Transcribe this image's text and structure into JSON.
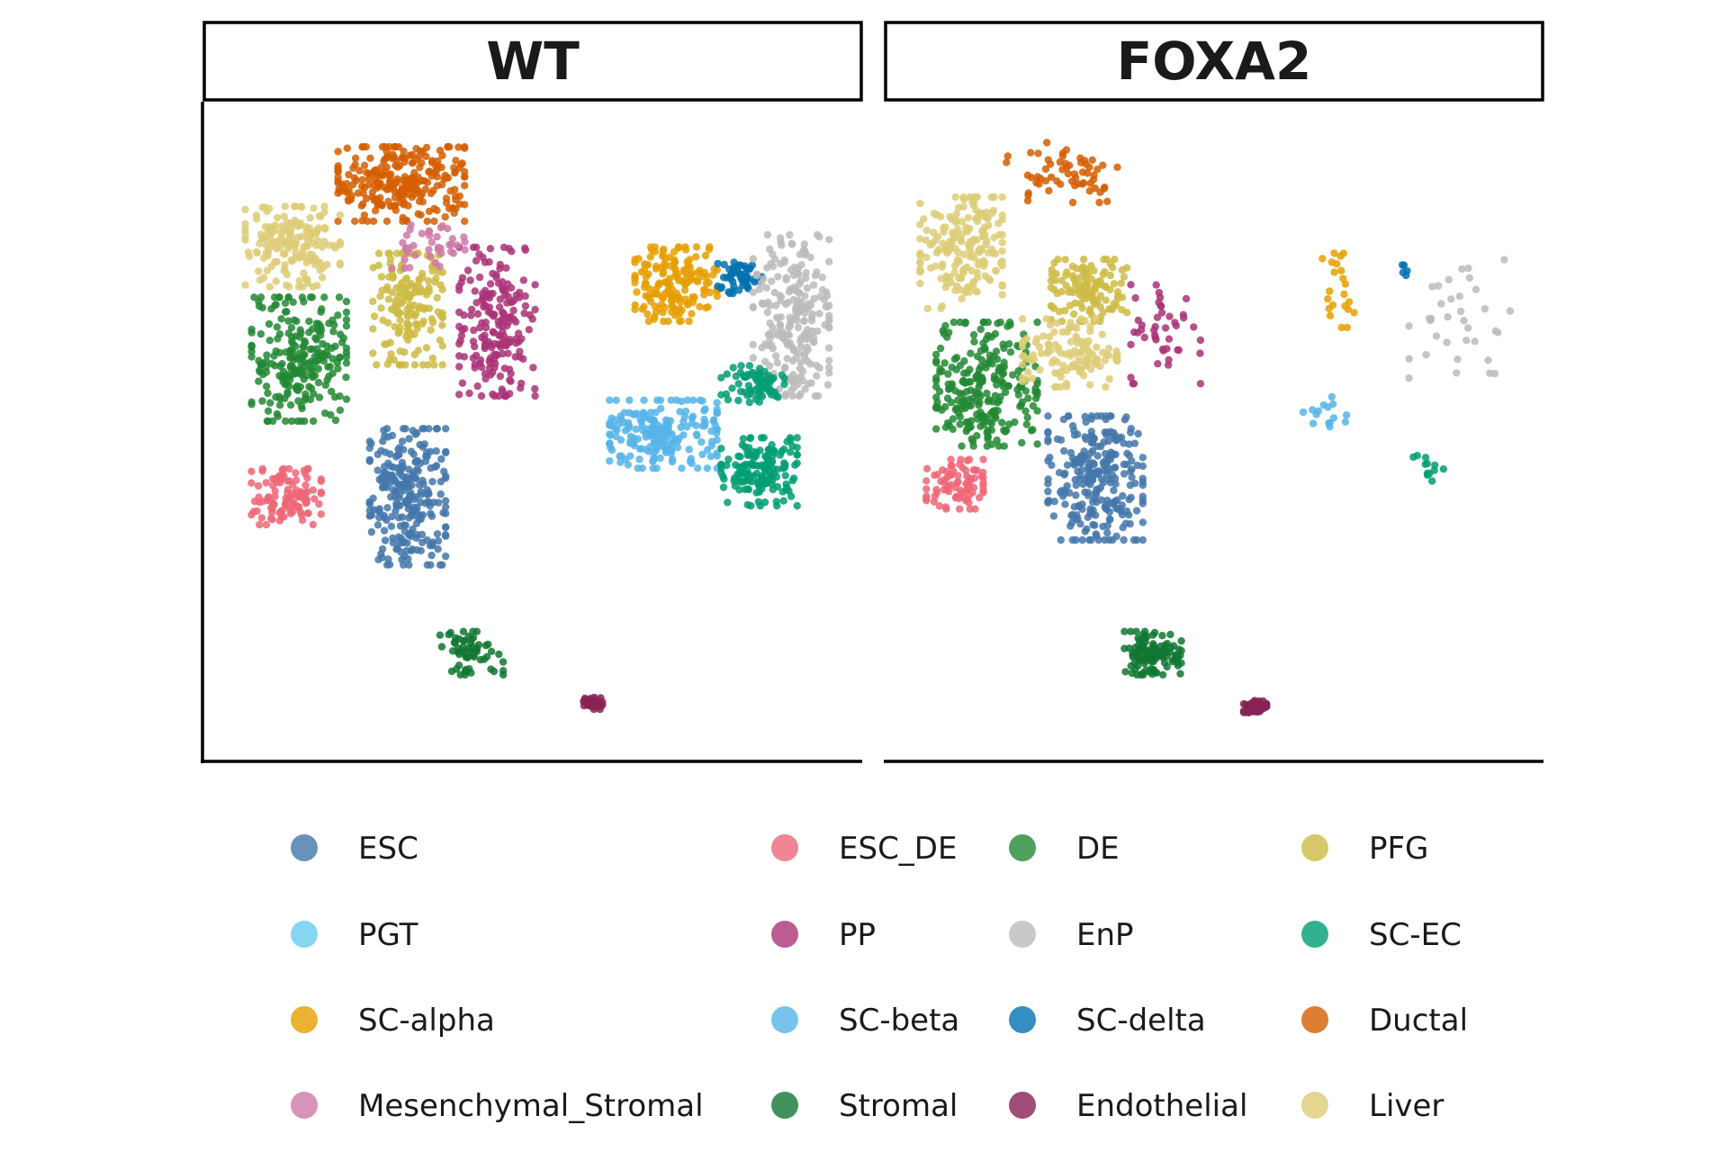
{
  "chart_data": {
    "type": "scatter",
    "title": "",
    "xlabel": "",
    "ylabel": "",
    "xlim": [
      0,
      10
    ],
    "ylim": [
      0,
      10
    ],
    "facets": [
      "WT",
      "FOXA2"
    ],
    "legend": [
      {
        "name": "ESC",
        "color": "#4477AA"
      },
      {
        "name": "ESC_DE",
        "color": "#EE6677"
      },
      {
        "name": "DE",
        "color": "#228833"
      },
      {
        "name": "PFG",
        "color": "#CCBB44"
      },
      {
        "name": "PGT",
        "color": "#66CCEE"
      },
      {
        "name": "PP",
        "color": "#AA3377"
      },
      {
        "name": "EnP",
        "color": "#BBBBBB"
      },
      {
        "name": "SC-EC",
        "color": "#009E73"
      },
      {
        "name": "SC-alpha",
        "color": "#E69F00"
      },
      {
        "name": "SC-beta",
        "color": "#56B4E9"
      },
      {
        "name": "SC-delta",
        "color": "#0072B2"
      },
      {
        "name": "Ductal",
        "color": "#D55E00"
      },
      {
        "name": "Mesenchymal_Stromal",
        "color": "#CC79A7"
      },
      {
        "name": "Stromal",
        "color": "#117733"
      },
      {
        "name": "Endothelial",
        "color": "#882255"
      },
      {
        "name": "Liver",
        "color": "#DDCC77"
      }
    ],
    "clusters": [
      {
        "panel": "WT",
        "type": "ESC",
        "x": 3.0,
        "y": 4.0,
        "sx": 0.6,
        "sy": 1.1,
        "n": 260
      },
      {
        "panel": "WT",
        "type": "ESC_DE",
        "x": 1.1,
        "y": 4.0,
        "sx": 0.55,
        "sy": 0.45,
        "n": 110
      },
      {
        "panel": "WT",
        "type": "DE",
        "x": 1.3,
        "y": 6.2,
        "sx": 0.75,
        "sy": 1.0,
        "n": 240
      },
      {
        "panel": "WT",
        "type": "PFG",
        "x": 3.0,
        "y": 7.0,
        "sx": 0.55,
        "sy": 0.9,
        "n": 170
      },
      {
        "panel": "WT",
        "type": "PP",
        "x": 4.4,
        "y": 6.8,
        "sx": 0.6,
        "sy": 1.2,
        "n": 200
      },
      {
        "panel": "WT",
        "type": "Ductal",
        "x": 2.9,
        "y": 9.0,
        "sx": 1.0,
        "sy": 0.6,
        "n": 260
      },
      {
        "panel": "WT",
        "type": "Liver",
        "x": 1.2,
        "y": 8.0,
        "sx": 0.75,
        "sy": 0.65,
        "n": 170
      },
      {
        "panel": "WT",
        "type": "Mesenchymal_Stromal",
        "x": 3.3,
        "y": 8.0,
        "sx": 0.6,
        "sy": 0.35,
        "n": 40
      },
      {
        "panel": "WT",
        "type": "Stromal",
        "x": 4.0,
        "y": 1.5,
        "sx": 0.5,
        "sy": 0.35,
        "n": 60
      },
      {
        "panel": "WT",
        "type": "Endothelial",
        "x": 5.9,
        "y": 0.7,
        "sx": 0.15,
        "sy": 0.1,
        "n": 30
      },
      {
        "panel": "WT",
        "type": "SC-alpha",
        "x": 7.2,
        "y": 7.4,
        "sx": 0.65,
        "sy": 0.6,
        "n": 170
      },
      {
        "panel": "WT",
        "type": "SC-delta",
        "x": 8.2,
        "y": 7.5,
        "sx": 0.35,
        "sy": 0.25,
        "n": 55
      },
      {
        "panel": "WT",
        "type": "EnP",
        "x": 9.0,
        "y": 6.9,
        "sx": 0.6,
        "sy": 1.3,
        "n": 230
      },
      {
        "panel": "WT",
        "type": "SC-EC",
        "x": 8.4,
        "y": 5.8,
        "sx": 0.5,
        "sy": 0.3,
        "n": 70
      },
      {
        "panel": "WT",
        "type": "SC-beta",
        "x": 7.0,
        "y": 5.0,
        "sx": 0.85,
        "sy": 0.55,
        "n": 200
      },
      {
        "panel": "WT",
        "type": "SC-EC",
        "x": 8.5,
        "y": 4.4,
        "sx": 0.6,
        "sy": 0.55,
        "n": 150
      },
      {
        "panel": "FOXA2",
        "type": "ESC",
        "x": 3.1,
        "y": 4.3,
        "sx": 0.75,
        "sy": 1.0,
        "n": 260
      },
      {
        "panel": "FOXA2",
        "type": "ESC_DE",
        "x": 0.9,
        "y": 4.2,
        "sx": 0.45,
        "sy": 0.4,
        "n": 80
      },
      {
        "panel": "FOXA2",
        "type": "DE",
        "x": 1.4,
        "y": 5.8,
        "sx": 0.8,
        "sy": 1.0,
        "n": 250
      },
      {
        "panel": "FOXA2",
        "type": "PFG",
        "x": 3.0,
        "y": 7.3,
        "sx": 0.6,
        "sy": 0.5,
        "n": 120
      },
      {
        "panel": "FOXA2",
        "type": "Liver",
        "x": 1.0,
        "y": 7.9,
        "sx": 0.65,
        "sy": 0.9,
        "n": 190
      },
      {
        "panel": "FOXA2",
        "type": "Liver",
        "x": 2.7,
        "y": 6.3,
        "sx": 0.75,
        "sy": 0.55,
        "n": 120
      },
      {
        "panel": "FOXA2",
        "type": "Ductal",
        "x": 2.6,
        "y": 9.2,
        "sx": 0.9,
        "sy": 0.5,
        "n": 60
      },
      {
        "panel": "FOXA2",
        "type": "PP",
        "x": 4.2,
        "y": 6.6,
        "sx": 0.55,
        "sy": 0.8,
        "n": 45
      },
      {
        "panel": "FOXA2",
        "type": "Stromal",
        "x": 4.0,
        "y": 1.5,
        "sx": 0.45,
        "sy": 0.35,
        "n": 110
      },
      {
        "panel": "FOXA2",
        "type": "Endothelial",
        "x": 5.6,
        "y": 0.65,
        "sx": 0.18,
        "sy": 0.1,
        "n": 70
      },
      {
        "panel": "FOXA2",
        "type": "SC-alpha",
        "x": 6.9,
        "y": 7.3,
        "sx": 0.25,
        "sy": 0.6,
        "n": 22
      },
      {
        "panel": "FOXA2",
        "type": "SC-delta",
        "x": 8.0,
        "y": 7.6,
        "sx": 0.1,
        "sy": 0.15,
        "n": 5
      },
      {
        "panel": "FOXA2",
        "type": "EnP",
        "x": 8.8,
        "y": 6.8,
        "sx": 0.8,
        "sy": 1.0,
        "n": 35
      },
      {
        "panel": "FOXA2",
        "type": "SC-beta",
        "x": 6.7,
        "y": 5.3,
        "sx": 0.35,
        "sy": 0.3,
        "n": 15
      },
      {
        "panel": "FOXA2",
        "type": "SC-EC",
        "x": 8.3,
        "y": 4.5,
        "sx": 0.25,
        "sy": 0.25,
        "n": 12
      }
    ]
  }
}
